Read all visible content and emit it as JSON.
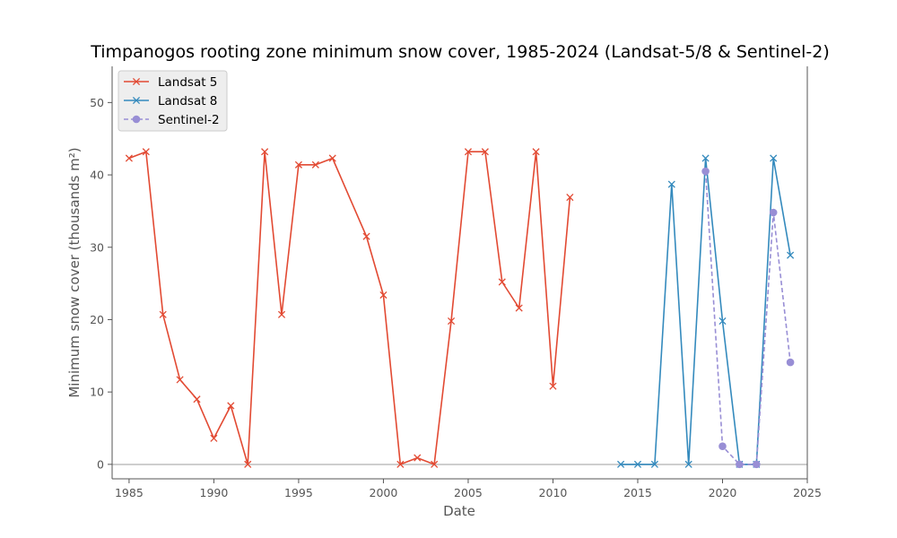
{
  "chart_data": {
    "type": "line",
    "title": "Timpanogos rooting zone minimum snow cover, 1985-2024 (Landsat-5/8 & Sentinel-2)",
    "xlabel": "Date",
    "ylabel": "Minimum snow cover (thousands m²)",
    "xlim": [
      1984,
      2025
    ],
    "ylim": [
      -2,
      55
    ],
    "xticks": [
      1985,
      1990,
      1995,
      2000,
      2005,
      2010,
      2015,
      2020,
      2025
    ],
    "yticks": [
      0,
      10,
      20,
      30,
      40,
      50
    ],
    "legend_position": "top-left",
    "grid": false,
    "zero_line": true,
    "series": [
      {
        "name": "Landsat 5",
        "color": "#E24A33",
        "marker": "x",
        "linestyle": "solid",
        "x": [
          1985,
          1986,
          1987,
          1988,
          1989,
          1990,
          1991,
          1992,
          1993,
          1994,
          1995,
          1996,
          1997,
          1999,
          2000,
          2001,
          2002,
          2003,
          2004,
          2005,
          2006,
          2007,
          2008,
          2009,
          2010,
          2011
        ],
        "y": [
          42.3,
          43.2,
          20.7,
          11.7,
          9.0,
          3.6,
          8.1,
          0.0,
          43.2,
          20.7,
          41.4,
          41.4,
          42.3,
          31.5,
          23.4,
          0.0,
          0.9,
          0.0,
          19.8,
          43.2,
          43.2,
          25.2,
          21.6,
          43.2,
          10.8,
          36.9
        ]
      },
      {
        "name": "Landsat 8",
        "color": "#348ABD",
        "marker": "x",
        "linestyle": "solid",
        "x": [
          2014,
          2015,
          2016,
          2017,
          2018,
          2019,
          2020,
          2021,
          2022,
          2023,
          2024
        ],
        "y": [
          0.0,
          0.0,
          0.0,
          38.7,
          0.0,
          42.3,
          19.8,
          0.0,
          0.0,
          42.3,
          28.9
        ]
      },
      {
        "name": "Sentinel-2",
        "color": "#988ED5",
        "marker": "o",
        "linestyle": "dashed",
        "x": [
          2019,
          2020,
          2021,
          2022,
          2023,
          2024
        ],
        "y": [
          40.5,
          2.5,
          0.0,
          0.0,
          34.8,
          14.1
        ]
      }
    ]
  }
}
